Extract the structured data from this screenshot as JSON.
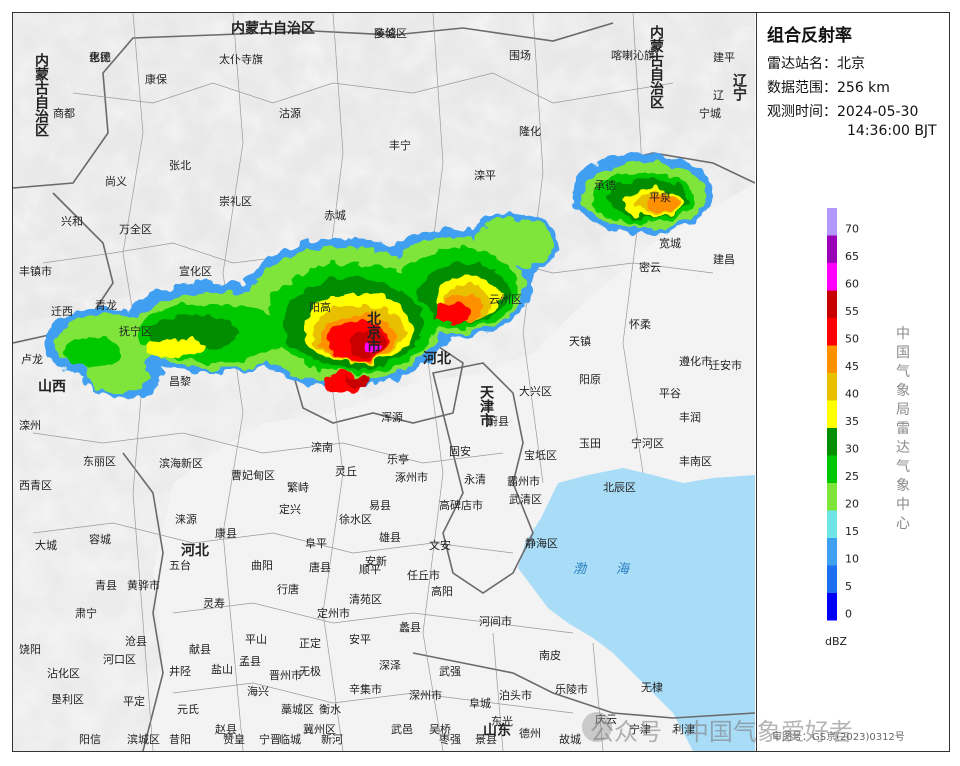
{
  "panel": {
    "title": "组合反射率",
    "rows": [
      {
        "label": "雷达站名：",
        "value": "北京"
      },
      {
        "label": "数据范围：",
        "value": "256 km"
      },
      {
        "label": "观测时间：",
        "value": "2024-05-30"
      },
      {
        "label": "",
        "value": "14:36:00 BJT"
      }
    ],
    "legend_unit": "dBZ",
    "vertical_label": "中国气象局雷达气象中心"
  },
  "legend": [
    {
      "value": "70",
      "color": "#b399ff"
    },
    {
      "value": "65",
      "color": "#9a00b8"
    },
    {
      "value": "60",
      "color": "#ff00ff"
    },
    {
      "value": "55",
      "color": "#c80000"
    },
    {
      "value": "50",
      "color": "#ff0000"
    },
    {
      "value": "45",
      "color": "#ff9000"
    },
    {
      "value": "40",
      "color": "#e8c000"
    },
    {
      "value": "35",
      "color": "#ffff00"
    },
    {
      "value": "30",
      "color": "#008e00"
    },
    {
      "value": "25",
      "color": "#00c800"
    },
    {
      "value": "20",
      "color": "#7fe53a"
    },
    {
      "value": "15",
      "color": "#6ee6e6"
    },
    {
      "value": "10",
      "color": "#3f9ff0"
    },
    {
      "value": "5",
      "color": "#1e6ef0"
    },
    {
      "value": "0",
      "color": "#0000f6"
    }
  ],
  "map": {
    "sea_label": "渤海",
    "province_labels": [
      "内蒙古自治区",
      "内蒙古自治区",
      "内蒙古自治区",
      "辽宁",
      "山西",
      "河北",
      "北京市",
      "天津市",
      "河北",
      "山东"
    ],
    "places": [
      "多伦",
      "化德",
      "太仆寺旗",
      "围场",
      "喀喇沁旗",
      "建平",
      "康保",
      "沽源",
      "隆化",
      "宁城",
      "辽",
      "商都",
      "张北",
      "丰宁",
      "承德",
      "尚义",
      "崇礼区",
      "赤城",
      "滦平",
      "平泉",
      "兴和",
      "万全区",
      "宽城",
      "建昌",
      "丰镇市",
      "宣化区",
      "密云",
      "迁西",
      "青龙",
      "阳高",
      "天镇",
      "怀柔",
      "遵化市",
      "迁安市",
      "卢龙",
      "抚宁区",
      "云州区",
      "阳原",
      "平谷",
      "丰润",
      "滦州",
      "昌黎",
      "浑源",
      "蔚县",
      "大兴区",
      "宝坻区",
      "玉田",
      "宁河区",
      "丰南区",
      "滦南",
      "乐亭",
      "涿州市",
      "固安",
      "永清",
      "武清区",
      "北辰区",
      "东丽区",
      "曹妃甸区",
      "灵丘",
      "易县",
      "高碑店市",
      "霸州市",
      "西青区",
      "繁峙",
      "定兴",
      "徐水区",
      "雄县",
      "文安",
      "静海区",
      "滨海新区",
      "涞源",
      "康县",
      "顺平",
      "容城",
      "阜平",
      "安新",
      "任丘市",
      "大城",
      "五台",
      "曲阳",
      "唐县",
      "清苑区",
      "高阳",
      "河间市",
      "青县",
      "黄骅市",
      "灵寿",
      "行唐",
      "定州市",
      "蠡县",
      "肃宁",
      "沧县",
      "平山",
      "正定",
      "安平",
      "饶阳",
      "献县",
      "孟县",
      "无极",
      "深泽",
      "武强",
      "泊头市",
      "南皮",
      "盐山",
      "海兴",
      "晋州市",
      "辛集市",
      "深州市",
      "阜城",
      "东光",
      "乐陵市",
      "庆云",
      "无棣",
      "沾化区",
      "河口区",
      "井陉",
      "藁城区",
      "衡水",
      "武邑",
      "吴桥",
      "宁津",
      "利津",
      "垦利区",
      "平定",
      "元氏",
      "赵县",
      "宁晋",
      "冀州区",
      "景县",
      "德州",
      "阳信",
      "滨城区",
      "昔阳",
      "赞皇",
      "临城",
      "新河",
      "枣强",
      "故城",
      "陵城区",
      "惠民"
    ],
    "watermark": "公众号 · 中国气象爱好者",
    "approval": "审图号：GS京(2023)0312号"
  }
}
